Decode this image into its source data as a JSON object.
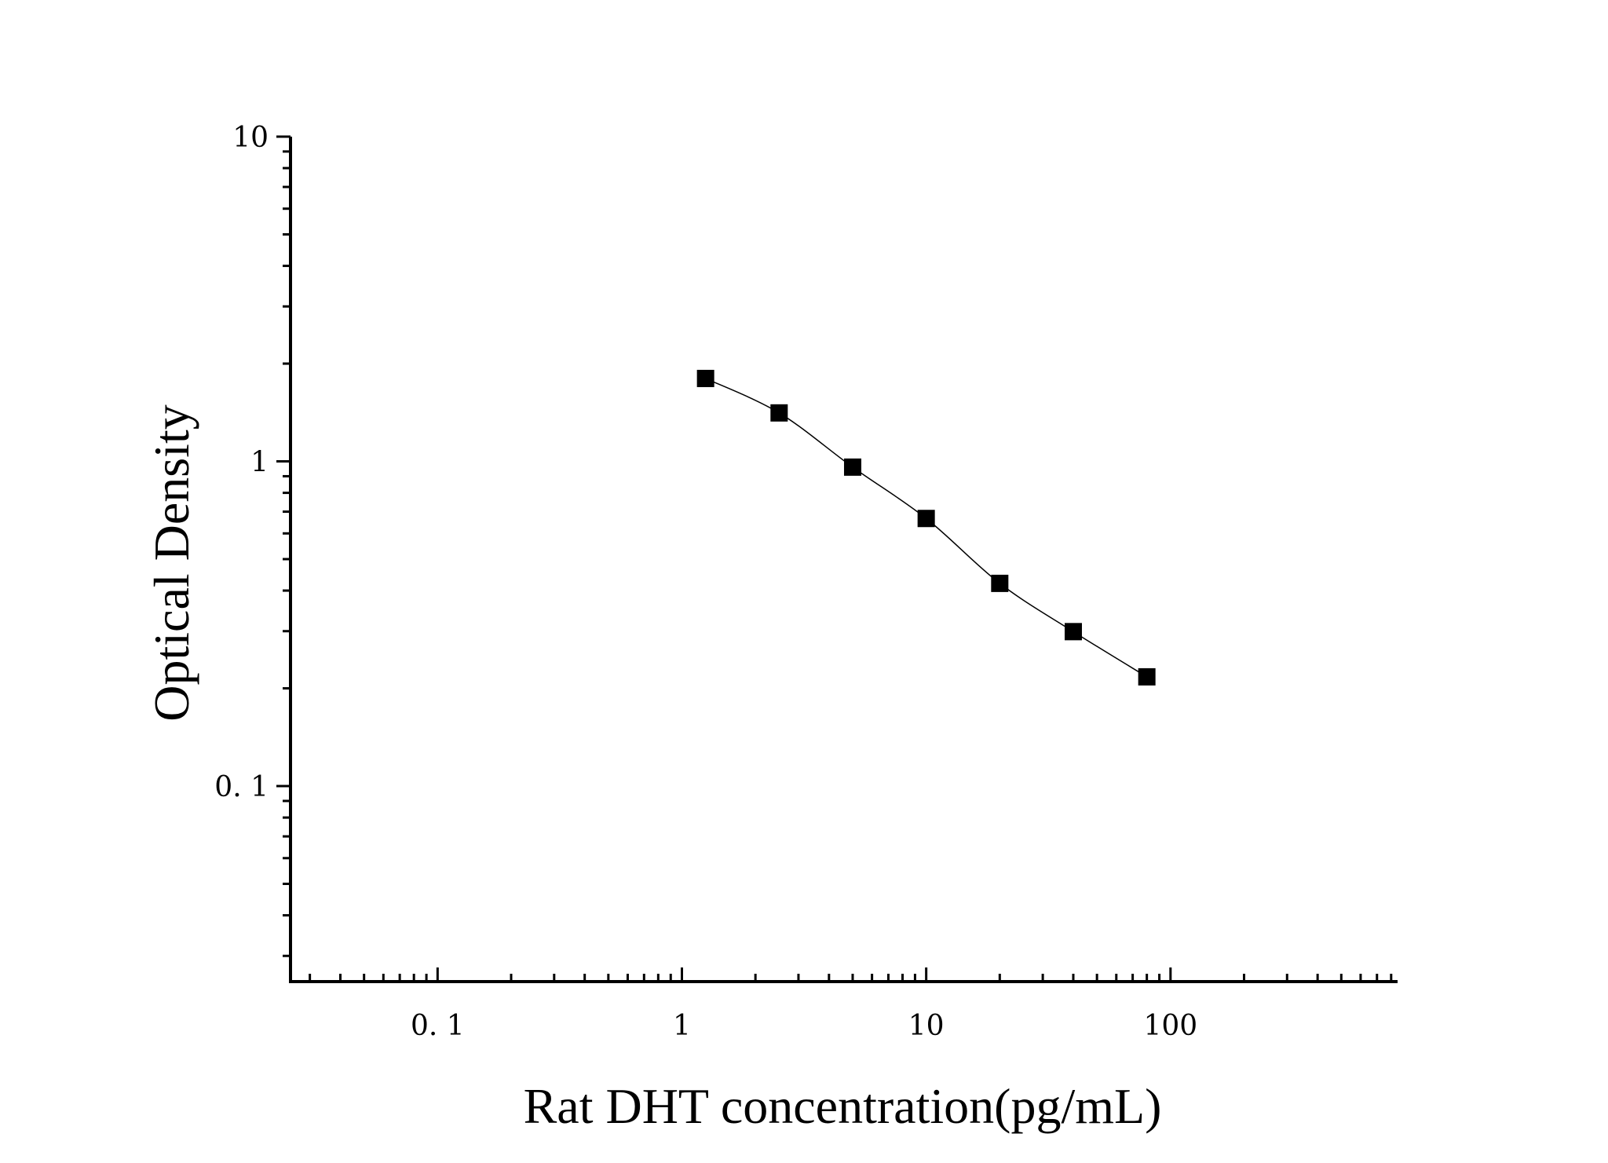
{
  "chart_data": {
    "type": "scatter",
    "xlabel": "Rat DHT concentration(pg/mL)",
    "ylabel": "Optical Density",
    "x_scale": "log",
    "y_scale": "log",
    "xlim": [
      0.025,
      850
    ],
    "ylim": [
      0.025,
      10
    ],
    "x_tick_labels": [
      {
        "value": 0.1,
        "label": "0. 1"
      },
      {
        "value": 1,
        "label": "1"
      },
      {
        "value": 10,
        "label": "10"
      },
      {
        "value": 100,
        "label": "100"
      }
    ],
    "y_tick_labels": [
      {
        "value": 0.1,
        "label": "0. 1"
      },
      {
        "value": 1,
        "label": "1"
      },
      {
        "value": 10,
        "label": "10"
      }
    ],
    "grid": false,
    "series": [
      {
        "marker": "square",
        "fit_line": true,
        "color": "#000000",
        "x": [
          1.25,
          2.5,
          5,
          10,
          20,
          40,
          80
        ],
        "y": [
          1.8,
          1.41,
          0.96,
          0.667,
          0.421,
          0.299,
          0.217
        ]
      }
    ]
  }
}
